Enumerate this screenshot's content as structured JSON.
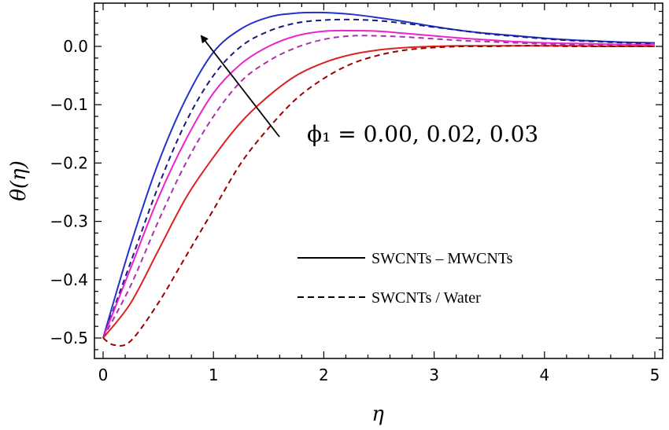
{
  "chart_data": {
    "type": "line",
    "xlabel": "η",
    "ylabel": "θ(η)",
    "xlim": [
      0,
      5
    ],
    "ylim": [
      -0.535,
      0.075
    ],
    "xticks": [
      0,
      1,
      2,
      3,
      4,
      5
    ],
    "xtick_labels": [
      "0",
      "1",
      "2",
      "3",
      "4",
      "5"
    ],
    "yticks": [
      -0.5,
      -0.4,
      -0.3,
      -0.2,
      -0.1,
      0.0
    ],
    "ytick_labels": [
      "−0.5",
      "−0.4",
      "−0.3",
      "−0.2",
      "−0.1",
      "0.0"
    ],
    "grid": false,
    "series": [
      {
        "color": "#2233cc",
        "dash": "solid",
        "x": [
          0,
          0.25,
          0.5,
          0.75,
          1,
          1.25,
          1.5,
          1.75,
          2,
          2.25,
          2.5,
          2.75,
          3,
          3.25,
          3.5,
          3.75,
          4,
          4.25,
          4.5,
          4.75,
          5
        ],
        "y": [
          -0.5,
          -0.34,
          -0.2,
          -0.09,
          -0.01,
          0.03,
          0.05,
          0.057,
          0.058,
          0.055,
          0.049,
          0.042,
          0.034,
          0.027,
          0.022,
          0.018,
          0.014,
          0.011,
          0.009,
          0.007,
          0.006
        ]
      },
      {
        "color": "#1a1a80",
        "dash": "dashed",
        "x": [
          0,
          0.25,
          0.5,
          0.75,
          1,
          1.25,
          1.5,
          1.75,
          2,
          2.25,
          2.5,
          2.75,
          3,
          3.25,
          3.5,
          3.75,
          4,
          4.25,
          4.5,
          4.75,
          5
        ],
        "y": [
          -0.5,
          -0.37,
          -0.24,
          -0.13,
          -0.05,
          0.0,
          0.026,
          0.04,
          0.045,
          0.046,
          0.044,
          0.039,
          0.033,
          0.027,
          0.021,
          0.017,
          0.013,
          0.01,
          0.008,
          0.006,
          0.005
        ]
      },
      {
        "color": "#ee22cc",
        "dash": "solid",
        "x": [
          0,
          0.25,
          0.5,
          0.75,
          1,
          1.25,
          1.5,
          1.75,
          2,
          2.25,
          2.5,
          2.75,
          3,
          3.25,
          3.5,
          3.75,
          4,
          4.25,
          4.5,
          4.75,
          5
        ],
        "y": [
          -0.5,
          -0.38,
          -0.26,
          -0.16,
          -0.08,
          -0.03,
          0.0,
          0.018,
          0.026,
          0.027,
          0.026,
          0.022,
          0.018,
          0.014,
          0.011,
          0.008,
          0.006,
          0.005,
          0.004,
          0.003,
          0.003
        ]
      },
      {
        "color": "#aa33aa",
        "dash": "dashed",
        "x": [
          0,
          0.25,
          0.5,
          0.75,
          1,
          1.25,
          1.5,
          1.75,
          2,
          2.25,
          2.5,
          2.75,
          3,
          3.25,
          3.5,
          3.75,
          4,
          4.25,
          4.5,
          4.75,
          5
        ],
        "y": [
          -0.5,
          -0.41,
          -0.3,
          -0.2,
          -0.12,
          -0.06,
          -0.025,
          -0.002,
          0.012,
          0.018,
          0.018,
          0.016,
          0.013,
          0.01,
          0.008,
          0.006,
          0.004,
          0.003,
          0.002,
          0.002,
          0.001
        ]
      },
      {
        "color": "#dd2222",
        "dash": "solid",
        "x": [
          0,
          0.25,
          0.5,
          0.75,
          1,
          1.25,
          1.5,
          1.75,
          2,
          2.25,
          2.5,
          2.75,
          3,
          3.25,
          3.5,
          3.75,
          4,
          4.25,
          4.5,
          4.75,
          5
        ],
        "y": [
          -0.5,
          -0.44,
          -0.35,
          -0.26,
          -0.19,
          -0.13,
          -0.085,
          -0.05,
          -0.028,
          -0.014,
          -0.006,
          -0.002,
          0.0,
          0.001,
          0.001,
          0.001,
          0.001,
          0.001,
          0.0,
          0.0,
          0.0
        ]
      },
      {
        "color": "#990000",
        "dash": "dashed",
        "x": [
          0,
          0.1,
          0.25,
          0.5,
          0.75,
          1,
          1.25,
          1.5,
          1.75,
          2,
          2.25,
          2.5,
          2.75,
          3,
          3.25,
          3.5,
          3.75,
          4,
          4.25,
          4.5,
          4.75,
          5
        ],
        "y": [
          -0.5,
          -0.512,
          -0.505,
          -0.44,
          -0.36,
          -0.28,
          -0.2,
          -0.14,
          -0.09,
          -0.055,
          -0.03,
          -0.015,
          -0.006,
          -0.002,
          0.0,
          0.0,
          0.001,
          0.001,
          0.0,
          0.0,
          0.0,
          0.0
        ]
      }
    ],
    "annotations": [
      {
        "text": "ϕ₁ = 0.00, 0.02, 0.03"
      }
    ],
    "legend": [
      {
        "label": "SWCNTs – MWCNTs",
        "dash": "solid"
      },
      {
        "label": "SWCNTs / Water",
        "dash": "dashed"
      }
    ]
  }
}
